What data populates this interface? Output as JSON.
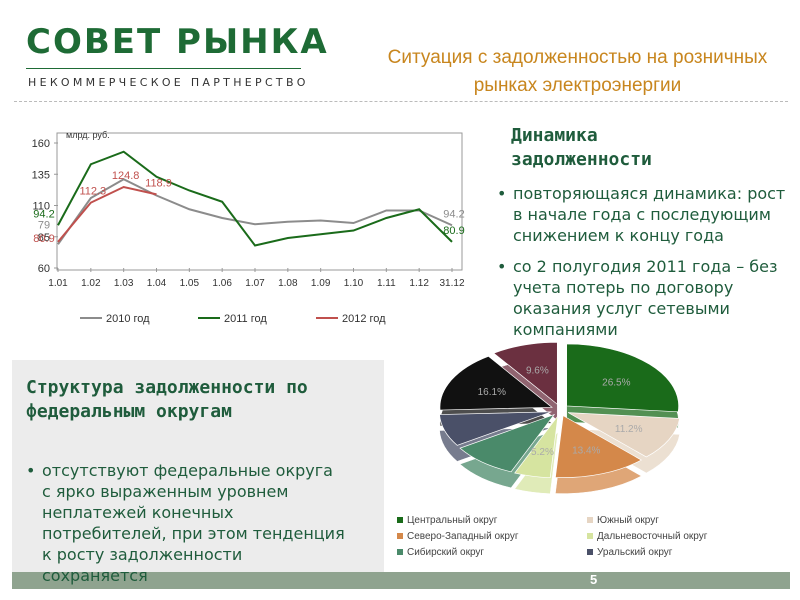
{
  "logo": {
    "name": "СОВЕТ РЫНКА",
    "subtitle": "НЕКОММЕРЧЕСКОЕ ПАРТНЕРСТВО"
  },
  "header": {
    "title": "Ситуация с задолженностью на розничных рынках электроэнергии"
  },
  "dynamics": {
    "heading": "Динамика задолженности",
    "bullets": [
      "повторяющаяся динамика: рост в начале года с последующим снижением к концу года",
      "со 2 полугодия 2011 года – без учета потерь по договору оказания услуг сетевыми компаниями"
    ]
  },
  "structure": {
    "heading": "Структура задолженности по федеральным округам",
    "bullets": [
      "отсутствуют федеральные округа с ярко выраженным уровнем неплатежей конечных потребителей, при этом тенденция к росту задолженности сохраняется"
    ]
  },
  "page_number": 5,
  "chart_data": [
    {
      "type": "line",
      "y_label": "млрд. руб.",
      "categories": [
        "1.01",
        "1.02",
        "1.03",
        "1.04",
        "1.05",
        "1.06",
        "1.07",
        "1.08",
        "1.09",
        "1.10",
        "1.11",
        "1.12",
        "31.12"
      ],
      "ylim": [
        60,
        160
      ],
      "yticks": [
        60,
        85,
        110,
        135,
        160
      ],
      "legend": "bottom",
      "series": [
        {
          "name": "2010 год",
          "color": "#8c8c8c",
          "values": [
            79,
            116,
            131,
            118,
            107,
            100,
            95,
            97,
            98,
            96,
            106,
            106,
            94.2
          ],
          "value_labels": [
            "79",
            null,
            null,
            null,
            null,
            null,
            null,
            null,
            null,
            null,
            null,
            null,
            "94.2"
          ]
        },
        {
          "name": "2011 год",
          "color": "#1a6b1a",
          "values": [
            94.2,
            143,
            153,
            133,
            122,
            113,
            78,
            84,
            87,
            90,
            100,
            107,
            80.9
          ],
          "value_labels": [
            "94.2",
            null,
            null,
            null,
            null,
            null,
            null,
            null,
            null,
            null,
            null,
            null,
            "80.9"
          ]
        },
        {
          "name": "2012 год",
          "color": "#c0504d",
          "values": [
            80.9,
            112.3,
            124.8,
            118.9,
            null,
            null,
            null,
            null,
            null,
            null,
            null,
            null,
            null
          ],
          "value_labels": [
            "80.9",
            "112.3",
            "124.8",
            "118.9",
            null,
            null,
            null,
            null,
            null,
            null,
            null,
            null,
            null
          ]
        }
      ]
    },
    {
      "type": "pie",
      "categories": [
        "Центральный округ",
        "Южный округ",
        "Северо-Западный округ",
        "Дальневосточный округ",
        "Сибирский округ",
        "Уральский округ",
        null,
        null
      ],
      "values": [
        26.5,
        11.2,
        13.4,
        5.2,
        9.6,
        8.4,
        16.1,
        9.6
      ],
      "value_labels": [
        "26.5%",
        "11.2%",
        "13.4%",
        "5.2%",
        null,
        null,
        "16.1%",
        "9.6%"
      ],
      "colors": [
        "#1a6b1a",
        "#e6d5c3",
        "#d4884a",
        "#d6e4a0",
        "#4a8a6a",
        "#4a5068",
        "#111111",
        "#6b3040"
      ],
      "legend": "bottom"
    }
  ]
}
